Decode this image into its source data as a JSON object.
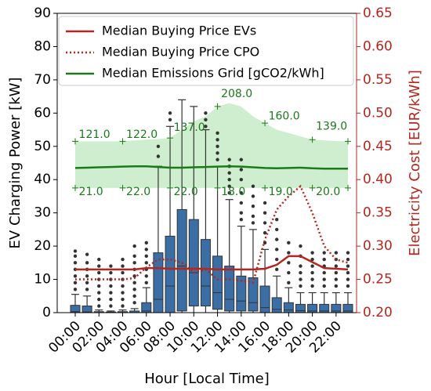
{
  "chart_data": {
    "type": "box",
    "x_label": "Hour [Local Time]",
    "y_label": "EV Charging Power [kW]",
    "y2_label": "Electricity Cost [EUR/kWh]",
    "categories": [
      "00:00",
      null,
      "02:00",
      null,
      "04:00",
      null,
      "06:00",
      null,
      "08:00",
      null,
      "10:00",
      null,
      "12:00",
      null,
      "14:00",
      null,
      "16:00",
      null,
      "18:00",
      null,
      "20:00",
      null,
      "22:00",
      null
    ],
    "ylim": [
      0,
      90
    ],
    "yticks": [
      0,
      10,
      20,
      30,
      40,
      50,
      60,
      70,
      80,
      90
    ],
    "y2lim": [
      0.2,
      0.65
    ],
    "y2ticks": [
      {
        "value": 0.2,
        "label": "0.20"
      },
      {
        "value": 0.25,
        "label": "0.25"
      },
      {
        "value": 0.3,
        "label": "0.30"
      },
      {
        "value": 0.35,
        "label": "0.35"
      },
      {
        "value": 0.4,
        "label": "0.40"
      },
      {
        "value": 0.45,
        "label": "0.45"
      },
      {
        "value": 0.5,
        "label": "0.50"
      },
      {
        "value": 0.55,
        "label": "0.55"
      },
      {
        "value": 0.6,
        "label": "0.60"
      },
      {
        "value": 0.65,
        "label": "0.65"
      }
    ],
    "y2_color": "#b5261e",
    "box_color": "#3a6ea5",
    "boxes": [
      {
        "q1": 0,
        "median": 0.3,
        "q3": 2.2,
        "whislo": 0,
        "whishi": 5.5,
        "fliers": [
          7,
          9,
          11,
          13,
          15,
          17,
          18.5
        ]
      },
      {
        "q1": 0,
        "median": 0.2,
        "q3": 2,
        "whislo": 0,
        "whishi": 5,
        "fliers": [
          7,
          9,
          11,
          13,
          15,
          17.5
        ]
      },
      {
        "q1": 0,
        "median": 0,
        "q3": 0.3,
        "whislo": 0,
        "whishi": 0.8,
        "fliers": [
          2,
          4,
          6,
          8,
          10,
          12,
          14,
          16
        ]
      },
      {
        "q1": 0,
        "median": 0,
        "q3": 0.2,
        "whislo": 0,
        "whishi": 0.5,
        "fliers": [
          2,
          4,
          6,
          8,
          10,
          12,
          14
        ]
      },
      {
        "q1": 0,
        "median": 0,
        "q3": 0.3,
        "whislo": 0,
        "whishi": 0.8,
        "fliers": [
          2,
          4,
          6,
          8,
          10,
          12,
          14,
          16
        ]
      },
      {
        "q1": 0,
        "median": 0,
        "q3": 0.5,
        "whislo": 0,
        "whishi": 1.2,
        "fliers": [
          3,
          5,
          7,
          9,
          11,
          13,
          15,
          17,
          20
        ]
      },
      {
        "q1": 0,
        "median": 0.5,
        "q3": 3,
        "whislo": 0,
        "whishi": 7.5,
        "fliers": [
          9,
          11,
          13,
          15,
          17,
          19,
          21
        ]
      },
      {
        "q1": 0,
        "median": 4,
        "q3": 18,
        "whislo": 0,
        "whishi": 44,
        "fliers": [
          47,
          50
        ]
      },
      {
        "q1": 0,
        "median": 8,
        "q3": 23,
        "whislo": 0,
        "whishi": 56,
        "fliers": [
          58,
          60
        ]
      },
      {
        "q1": 0.5,
        "median": 14,
        "q3": 31,
        "whislo": 0,
        "whishi": 64,
        "fliers": []
      },
      {
        "q1": 2,
        "median": 12,
        "q3": 28,
        "whislo": 0,
        "whishi": 62,
        "fliers": []
      },
      {
        "q1": 2,
        "median": 8,
        "q3": 22,
        "whislo": 0,
        "whishi": 55,
        "fliers": [
          56,
          58,
          60
        ]
      },
      {
        "q1": 1,
        "median": 6,
        "q3": 17,
        "whislo": 0,
        "whishi": 44,
        "fliers": [
          46,
          48,
          50,
          52,
          54
        ]
      },
      {
        "q1": 0.5,
        "median": 4,
        "q3": 14,
        "whislo": 0,
        "whishi": 34,
        "fliers": [
          36,
          38,
          40,
          42,
          44,
          46
        ]
      },
      {
        "q1": 0.5,
        "median": 3.5,
        "q3": 11,
        "whislo": 0,
        "whishi": 26,
        "fliers": [
          28,
          30,
          33,
          36,
          40,
          43,
          46
        ]
      },
      {
        "q1": 0.5,
        "median": 3,
        "q3": 10.5,
        "whislo": 0,
        "whishi": 25,
        "fliers": [
          27,
          29,
          32,
          35,
          38
        ]
      },
      {
        "q1": 0,
        "median": 1.5,
        "q3": 8,
        "whislo": 0,
        "whishi": 19,
        "fliers": [
          21,
          24,
          27,
          30,
          33
        ]
      },
      {
        "q1": 0,
        "median": 1,
        "q3": 4.5,
        "whislo": 0,
        "whishi": 11,
        "fliers": [
          13,
          16,
          19,
          22,
          25,
          28
        ]
      },
      {
        "q1": 0,
        "median": 0.8,
        "q3": 3,
        "whislo": 0,
        "whishi": 7.5,
        "fliers": [
          9,
          12,
          15,
          18,
          21
        ]
      },
      {
        "q1": 0,
        "median": 0.6,
        "q3": 2.5,
        "whislo": 0,
        "whishi": 6,
        "fliers": [
          8,
          10,
          12,
          14,
          17,
          20
        ]
      },
      {
        "q1": 0,
        "median": 0.5,
        "q3": 2.5,
        "whislo": 0,
        "whishi": 6,
        "fliers": [
          8,
          10,
          12,
          14,
          16,
          18
        ]
      },
      {
        "q1": 0,
        "median": 0.5,
        "q3": 2.5,
        "whislo": 0,
        "whishi": 6,
        "fliers": [
          8,
          10,
          12,
          14,
          16,
          18
        ]
      },
      {
        "q1": 0,
        "median": 0.5,
        "q3": 2.5,
        "whislo": 0,
        "whishi": 6,
        "fliers": [
          8,
          10,
          12,
          14,
          16,
          18
        ]
      },
      {
        "q1": 0,
        "median": 0.5,
        "q3": 2.5,
        "whislo": 0,
        "whishi": 6,
        "fliers": [
          8,
          10,
          12,
          14,
          16,
          18
        ]
      }
    ],
    "band": {
      "color": "#a8e0a8",
      "upper": [
        51.5,
        51.5,
        51.5,
        51.5,
        51.5,
        51.8,
        52,
        52.2,
        52.5,
        55,
        57.5,
        59,
        62,
        63,
        62,
        59,
        57,
        55,
        54,
        53,
        52,
        51.8,
        51.6,
        51.5
      ],
      "lower": [
        37.5,
        37.5,
        37.5,
        37.5,
        37.5,
        37.5,
        37.5,
        37.5,
        37.5,
        37.5,
        37.5,
        37.5,
        37.5,
        37.5,
        37.5,
        37.5,
        37.5,
        37.5,
        37.5,
        37.5,
        37.5,
        37.5,
        37.5,
        37.5
      ]
    },
    "series": [
      {
        "name": "Median Buying Price EVs",
        "color": "#b5261e",
        "style": "solid",
        "axis": "y2",
        "values": [
          0.265,
          0.265,
          0.265,
          0.265,
          0.265,
          0.265,
          0.267,
          0.267,
          0.266,
          0.266,
          0.266,
          0.266,
          0.265,
          0.265,
          0.265,
          0.265,
          0.266,
          0.272,
          0.285,
          0.285,
          0.276,
          0.267,
          0.266,
          0.265
        ]
      },
      {
        "name": "Median Buying Price CPO",
        "color": "#b5261e",
        "style": "dotted",
        "axis": "y2",
        "values": [
          0.25,
          0.25,
          0.25,
          0.25,
          0.25,
          0.252,
          0.268,
          0.28,
          0.28,
          0.275,
          0.26,
          0.265,
          0.25,
          0.25,
          0.248,
          0.245,
          0.31,
          0.355,
          0.375,
          0.39,
          0.35,
          0.3,
          0.28,
          0.275
        ]
      },
      {
        "name": "Median Emissions Grid [gCO2/kWh]",
        "color": "#1a7a1a",
        "style": "solid",
        "axis": "y",
        "values": [
          43.5,
          43.6,
          43.7,
          43.8,
          43.9,
          44,
          44,
          43.8,
          43.6,
          43.6,
          43.7,
          43.8,
          43.9,
          44,
          43.9,
          43.7,
          43.5,
          43.4,
          43.5,
          43.6,
          43.4,
          43.3,
          43.3,
          43.3
        ]
      }
    ],
    "markers_x": [
      0,
      4,
      8,
      12,
      16,
      20,
      23
    ],
    "annotations": [
      {
        "value": 121,
        "label": "121.0",
        "x": 0.3,
        "y": 53.5
      },
      {
        "value": 122,
        "label": "122.0",
        "x": 4.3,
        "y": 53.5
      },
      {
        "value": 137,
        "label": "137.0",
        "x": 8.3,
        "y": 55.6
      },
      {
        "value": 208,
        "label": "208.0",
        "x": 12.3,
        "y": 65.7
      },
      {
        "value": 160,
        "label": "160.0",
        "x": 16.3,
        "y": 59
      },
      {
        "value": 139,
        "label": "139.0",
        "x": 20.3,
        "y": 56
      },
      {
        "value": 21,
        "label": "21.0",
        "x": 0.3,
        "y": 36.3
      },
      {
        "value": 22,
        "label": "22.0",
        "x": 4.3,
        "y": 36.3
      },
      {
        "value": 22,
        "label": "22.0",
        "x": 8.3,
        "y": 36.3
      },
      {
        "value": 18,
        "label": "18.0",
        "x": 12.3,
        "y": 36.3
      },
      {
        "value": 19,
        "label": "19.0",
        "x": 16.3,
        "y": 36.3
      },
      {
        "value": 20,
        "label": "20.0",
        "x": 20.3,
        "y": 36.3
      }
    ]
  }
}
